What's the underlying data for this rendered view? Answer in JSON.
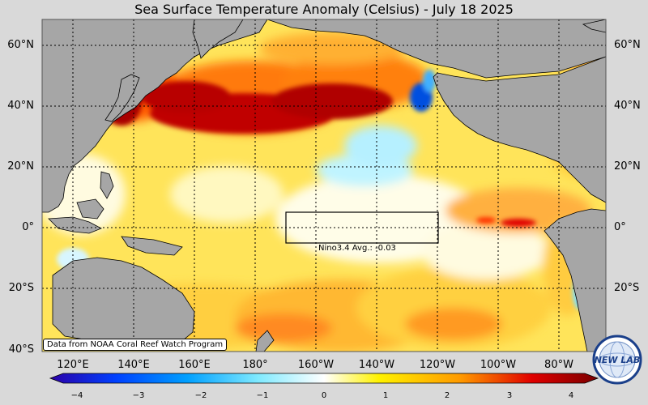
{
  "title": "Sea Surface Temperature Anomaly (Celsius) - July 18 2025",
  "lat_labels": [
    "60°N",
    "40°N",
    "20°N",
    "0°",
    "20°S",
    "40°S"
  ],
  "lat_values": [
    60,
    40,
    20,
    0,
    -20,
    -40
  ],
  "lon_labels": [
    "120°E",
    "140°E",
    "160°E",
    "180°",
    "160°W",
    "140°W",
    "120°W",
    "100°W",
    "80°W"
  ],
  "lon_values": [
    120,
    140,
    160,
    180,
    200,
    220,
    240,
    260,
    280
  ],
  "nino_label": "Nino3.4 Avg.: -0.03",
  "credit": "Data from NOAA Coral Reef Watch Program",
  "colorbar": {
    "ticks": [
      "−4",
      "−3",
      "−2",
      "−1",
      "0",
      "1",
      "2",
      "3",
      "4"
    ],
    "min": -4,
    "max": 4,
    "colors": [
      "#2b00a8",
      "#0050ff",
      "#00c8ff",
      "#ffffff",
      "#ffe600",
      "#ff8c00",
      "#e00000",
      "#8a0000"
    ]
  },
  "logo": {
    "text": "NEW LAB"
  },
  "colors": {
    "land": "#a6a6a6",
    "background": "#d9d9d9",
    "warm_strong": "#b30000",
    "warm": "#ff6600",
    "mild": "#ffd200",
    "neutral": "#ffffff",
    "cool": "#80e8ff"
  }
}
